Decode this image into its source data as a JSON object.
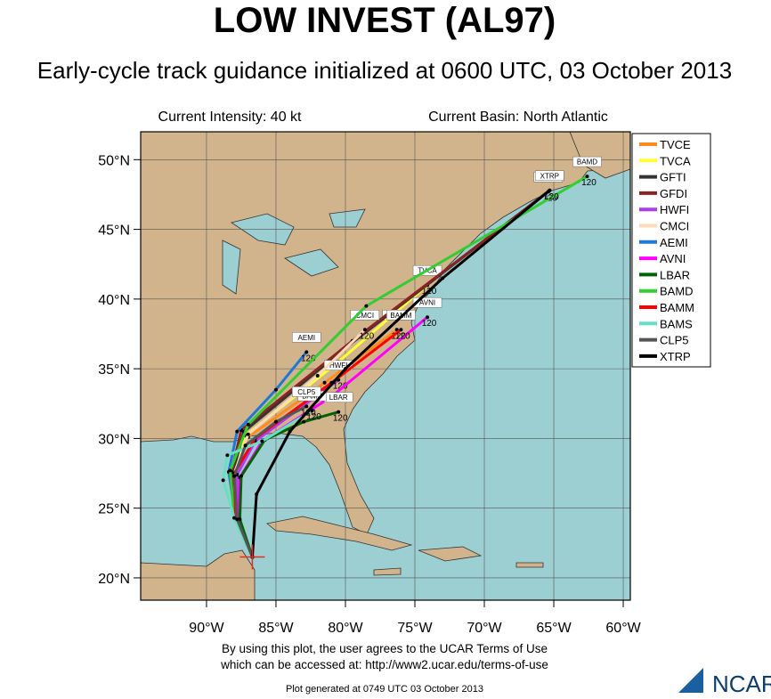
{
  "header": {
    "title": "LOW INVEST (AL97)",
    "subtitle": "Early-cycle track guidance initialized at 0600 UTC, 03 October 2013"
  },
  "info": {
    "intensity": "Current Intensity: 40 kt",
    "basin": "Current Basin: North Atlantic"
  },
  "map": {
    "lonlim": [
      -94.74,
      -59.49
    ],
    "latlim": [
      18.4,
      52.0
    ],
    "lonticks": [
      {
        "value": -90,
        "label": "90°W"
      },
      {
        "value": -85,
        "label": "85°W"
      },
      {
        "value": -80,
        "label": "80°W"
      },
      {
        "value": -75,
        "label": "75°W"
      },
      {
        "value": -70,
        "label": "70°W"
      },
      {
        "value": -65,
        "label": "65°W"
      },
      {
        "value": -60,
        "label": "60°W"
      }
    ],
    "latticks": [
      {
        "value": 20,
        "label": "20°N"
      },
      {
        "value": 25,
        "label": "25°N"
      },
      {
        "value": 30,
        "label": "30°N"
      },
      {
        "value": 35,
        "label": "35°N"
      },
      {
        "value": 40,
        "label": "40°N"
      },
      {
        "value": 45,
        "label": "45°N"
      },
      {
        "value": 50,
        "label": "50°N"
      }
    ],
    "grid": true,
    "final_hour_label": "120",
    "tracks": [
      {
        "name": "TVCE",
        "color": "#ff8c1a",
        "lat": [
          21.5,
          24.3,
          27.5,
          30.1,
          34.0,
          37.8
        ],
        "lon": [
          -86.7,
          -87.9,
          -88.0,
          -87.0,
          -81.5,
          -76.3
        ]
      },
      {
        "name": "TVCA",
        "color": "#ffff33",
        "lat": [
          21.5,
          24.3,
          27.5,
          30.2,
          35.5,
          41.0
        ],
        "lon": [
          -86.7,
          -87.9,
          -88.0,
          -87.2,
          -80.5,
          -74.1
        ]
      },
      {
        "name": "GFTI",
        "color": "#333333",
        "lat": [
          21.5,
          24.3,
          27.6,
          30.5,
          36.5,
          47.8
        ],
        "lon": [
          -86.7,
          -87.9,
          -88.1,
          -87.3,
          -80.0,
          -65.3
        ]
      },
      {
        "name": "GFDI",
        "color": "#8b2323",
        "lat": [
          21.5,
          24.3,
          27.6,
          30.6,
          37.0,
          47.7
        ],
        "lon": [
          -86.7,
          -87.9,
          -88.2,
          -87.5,
          -79.5,
          -65.4
        ]
      },
      {
        "name": "HWFI",
        "color": "#b23aee",
        "lat": [
          21.5,
          24.3,
          27.4,
          29.8,
          32.0,
          34.2
        ],
        "lon": [
          -86.7,
          -87.8,
          -87.8,
          -86.5,
          -83.5,
          -80.5
        ]
      },
      {
        "name": "CMCI",
        "color": "#ffdab9",
        "lat": [
          21.5,
          24.3,
          27.5,
          30.3,
          34.5,
          37.8
        ],
        "lon": [
          -86.7,
          -87.9,
          -88.0,
          -87.0,
          -82.0,
          -78.6
        ]
      },
      {
        "name": "AEMI",
        "color": "#1e78d7",
        "lat": [
          21.5,
          24.3,
          27.6,
          30.5,
          33.5,
          36.2
        ],
        "lon": [
          -86.7,
          -87.9,
          -88.4,
          -87.8,
          -85.0,
          -82.8
        ]
      },
      {
        "name": "AVNI",
        "color": "#ff00ff",
        "lat": [
          21.5,
          24.2,
          27.2,
          29.8,
          33.0,
          38.7
        ],
        "lon": [
          -86.7,
          -87.7,
          -87.6,
          -86.0,
          -81.0,
          -74.1
        ]
      },
      {
        "name": "LBAR",
        "color": "#006400",
        "lat": [
          21.5,
          24.2,
          27.3,
          29.9,
          31.2,
          31.9
        ],
        "lon": [
          -86.7,
          -87.6,
          -87.5,
          -85.8,
          -83.0,
          -80.5
        ]
      },
      {
        "name": "BAMD",
        "color": "#32cd32",
        "lat": [
          21.5,
          24.3,
          27.7,
          31.0,
          39.5,
          48.8
        ],
        "lon": [
          -86.7,
          -88.0,
          -88.3,
          -87.0,
          -78.5,
          -62.6
        ]
      },
      {
        "name": "BAMM",
        "color": "#ff0000",
        "lat": [
          21.5,
          24.3,
          27.5,
          30.0,
          34.0,
          37.8
        ],
        "lon": [
          -86.7,
          -87.9,
          -88.0,
          -86.5,
          -81.0,
          -76.0
        ]
      },
      {
        "name": "BAMS",
        "color": "#66e0c2",
        "lat": [
          21.5,
          24.3,
          27.0,
          28.8,
          29.8,
          32.0
        ],
        "lon": [
          -86.7,
          -88.0,
          -88.8,
          -88.5,
          -86.0,
          -82.4
        ]
      },
      {
        "name": "CLP5",
        "color": "#555555",
        "lat": [
          21.5,
          24.2,
          27.3,
          29.5,
          31.2,
          32.3
        ],
        "lon": [
          -86.7,
          -87.8,
          -88.0,
          -87.2,
          -85.0,
          -82.8
        ]
      },
      {
        "name": "XTRP",
        "color": "#000000",
        "lat": [
          21.5,
          26.0,
          30.5,
          35.0,
          41.5,
          47.8
        ],
        "lon": [
          -86.7,
          -86.4,
          -84.0,
          -80.0,
          -73.0,
          -65.3
        ]
      }
    ]
  },
  "footer": {
    "terms1": "By using this plot, the user agrees to the UCAR Terms of Use",
    "terms2": "which can be accessed at: http://www2.ucar.edu/terms-of-use",
    "generated": "Plot generated at 0749 UTC   03 October 2013",
    "logo": "NCAR"
  }
}
